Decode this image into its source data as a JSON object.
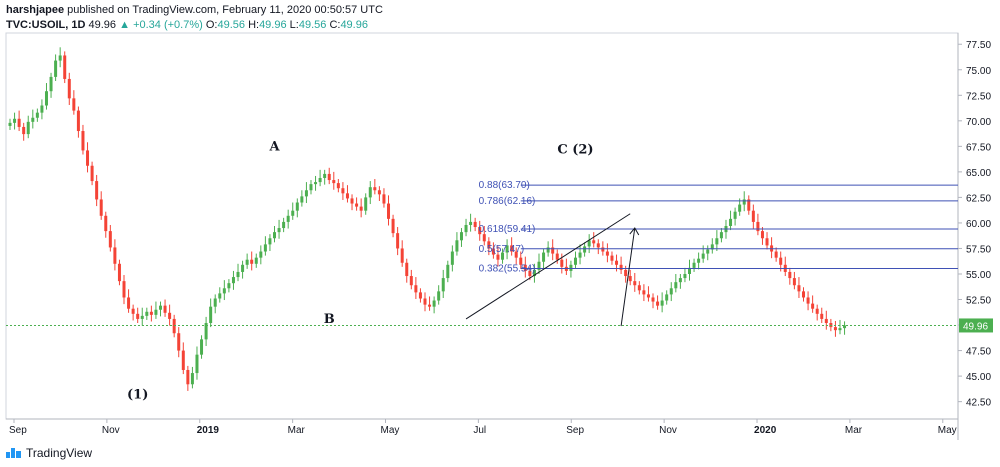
{
  "header": {
    "author": "harshjapee",
    "published": "published on TradingView.com, February 11, 2020 00:50:57 UTC",
    "symbol": "TVC:USOIL, 1D",
    "last": "49.96",
    "change_arrow": "▲",
    "change": "+0.34 (+0.7%)",
    "o_label": "O:",
    "o_value": "49.56",
    "h_label": "H:",
    "h_value": "49.96",
    "l_label": "L:",
    "l_value": "49.56",
    "c_label": "C:",
    "c_value": "49.96"
  },
  "footer": {
    "brand": "TradingView"
  },
  "colors": {
    "up": "#26a69a",
    "down": "#ef5350",
    "upbar": "#4caf50",
    "downbar": "#f44336",
    "fib": "#3f51b5",
    "price_line": "#4caf50",
    "price_tag": "#4caf50"
  },
  "chart_data": {
    "type": "candlestick",
    "x_ticks": [
      "Sep",
      "Nov",
      "2019",
      "Mar",
      "May",
      "Jul",
      "Sep",
      "Nov",
      "2020",
      "Mar",
      "May"
    ],
    "y_ticks": [
      "77.50",
      "75.00",
      "72.50",
      "70.00",
      "67.50",
      "65.00",
      "62.50",
      "60.00",
      "57.50",
      "55.00",
      "52.50",
      "50.00",
      "47.50",
      "45.00",
      "42.50"
    ],
    "ylim": [
      40.8,
      78.6
    ],
    "current_price": 49.96,
    "current_price_label": "49.96",
    "wave_labels": [
      {
        "text": "(1)",
        "date_index": 28,
        "price": 42.2
      },
      {
        "text": "A",
        "date_index": 58,
        "price": 66.5
      },
      {
        "text": "B",
        "date_index": 70,
        "price": 49.6
      },
      {
        "text": "C (2)",
        "date_index": 124,
        "price": 66.2
      }
    ],
    "fib_levels": [
      {
        "label": "0.88(63.70)",
        "price": 63.7
      },
      {
        "label": "0.786(62.16)",
        "price": 62.16
      },
      {
        "label": "0.618(59.41)",
        "price": 59.41
      },
      {
        "label": "0.5(57.47)",
        "price": 57.47
      },
      {
        "label": "0.382(55.54)",
        "price": 55.54
      }
    ],
    "trendline": {
      "from": {
        "date_index": 100,
        "price": 50.6
      },
      "to": {
        "date_index": 136,
        "price": 60.9
      }
    },
    "arrow": {
      "from": {
        "date_index": 134,
        "price": 49.9
      },
      "to": {
        "date_index": 137,
        "price": 59.5
      }
    },
    "closes": [
      69.8,
      70.2,
      69.4,
      68.7,
      69.9,
      70.3,
      70.8,
      71.5,
      72.9,
      74.3,
      75.9,
      76.4,
      74.1,
      72.2,
      71.0,
      69.0,
      67.1,
      65.6,
      64.1,
      62.3,
      60.7,
      59.2,
      57.6,
      56.0,
      54.3,
      52.7,
      51.6,
      51.1,
      50.6,
      50.9,
      51.3,
      51.0,
      51.5,
      51.9,
      51.2,
      50.6,
      49.2,
      47.5,
      45.6,
      44.2,
      45.3,
      47.1,
      48.6,
      50.2,
      51.8,
      52.6,
      53.1,
      53.6,
      54.1,
      54.7,
      55.2,
      55.9,
      56.4,
      56.0,
      56.6,
      57.2,
      57.9,
      58.5,
      59.1,
      59.5,
      60.1,
      60.7,
      61.2,
      62.0,
      62.6,
      63.2,
      63.8,
      64.0,
      64.4,
      64.8,
      64.2,
      63.9,
      63.4,
      62.9,
      62.4,
      61.9,
      61.6,
      61.2,
      62.5,
      63.5,
      63.2,
      62.8,
      61.9,
      60.4,
      59.0,
      57.5,
      56.1,
      54.8,
      53.9,
      53.2,
      52.6,
      52.0,
      51.8,
      52.4,
      53.3,
      54.6,
      55.9,
      57.2,
      58.3,
      59.1,
      59.8,
      60.1,
      59.6,
      58.9,
      58.2,
      57.5,
      56.9,
      56.4,
      57.1,
      57.8,
      57.2,
      56.6,
      55.9,
      55.3,
      54.8,
      55.4,
      56.2,
      57.1,
      57.6,
      57.0,
      56.4,
      55.7,
      55.3,
      55.9,
      56.6,
      57.1,
      57.7,
      58.3,
      58.0,
      57.6,
      57.2,
      56.8,
      56.3,
      55.9,
      55.4,
      54.8,
      54.3,
      53.9,
      53.4,
      53.0,
      52.7,
      52.3,
      51.9,
      52.4,
      53.0,
      53.6,
      54.2,
      54.6,
      55.0,
      55.6,
      56.1,
      56.5,
      57.0,
      57.4,
      57.9,
      58.5,
      59.1,
      59.7,
      60.4,
      61.1,
      61.8,
      62.3,
      61.2,
      60.1,
      59.2,
      58.5,
      57.8,
      57.2,
      56.6,
      55.9,
      55.2,
      54.6,
      53.9,
      53.3,
      52.7,
      52.1,
      51.6,
      51.1,
      50.6,
      50.2,
      49.8,
      49.5,
      49.7,
      49.96
    ]
  }
}
